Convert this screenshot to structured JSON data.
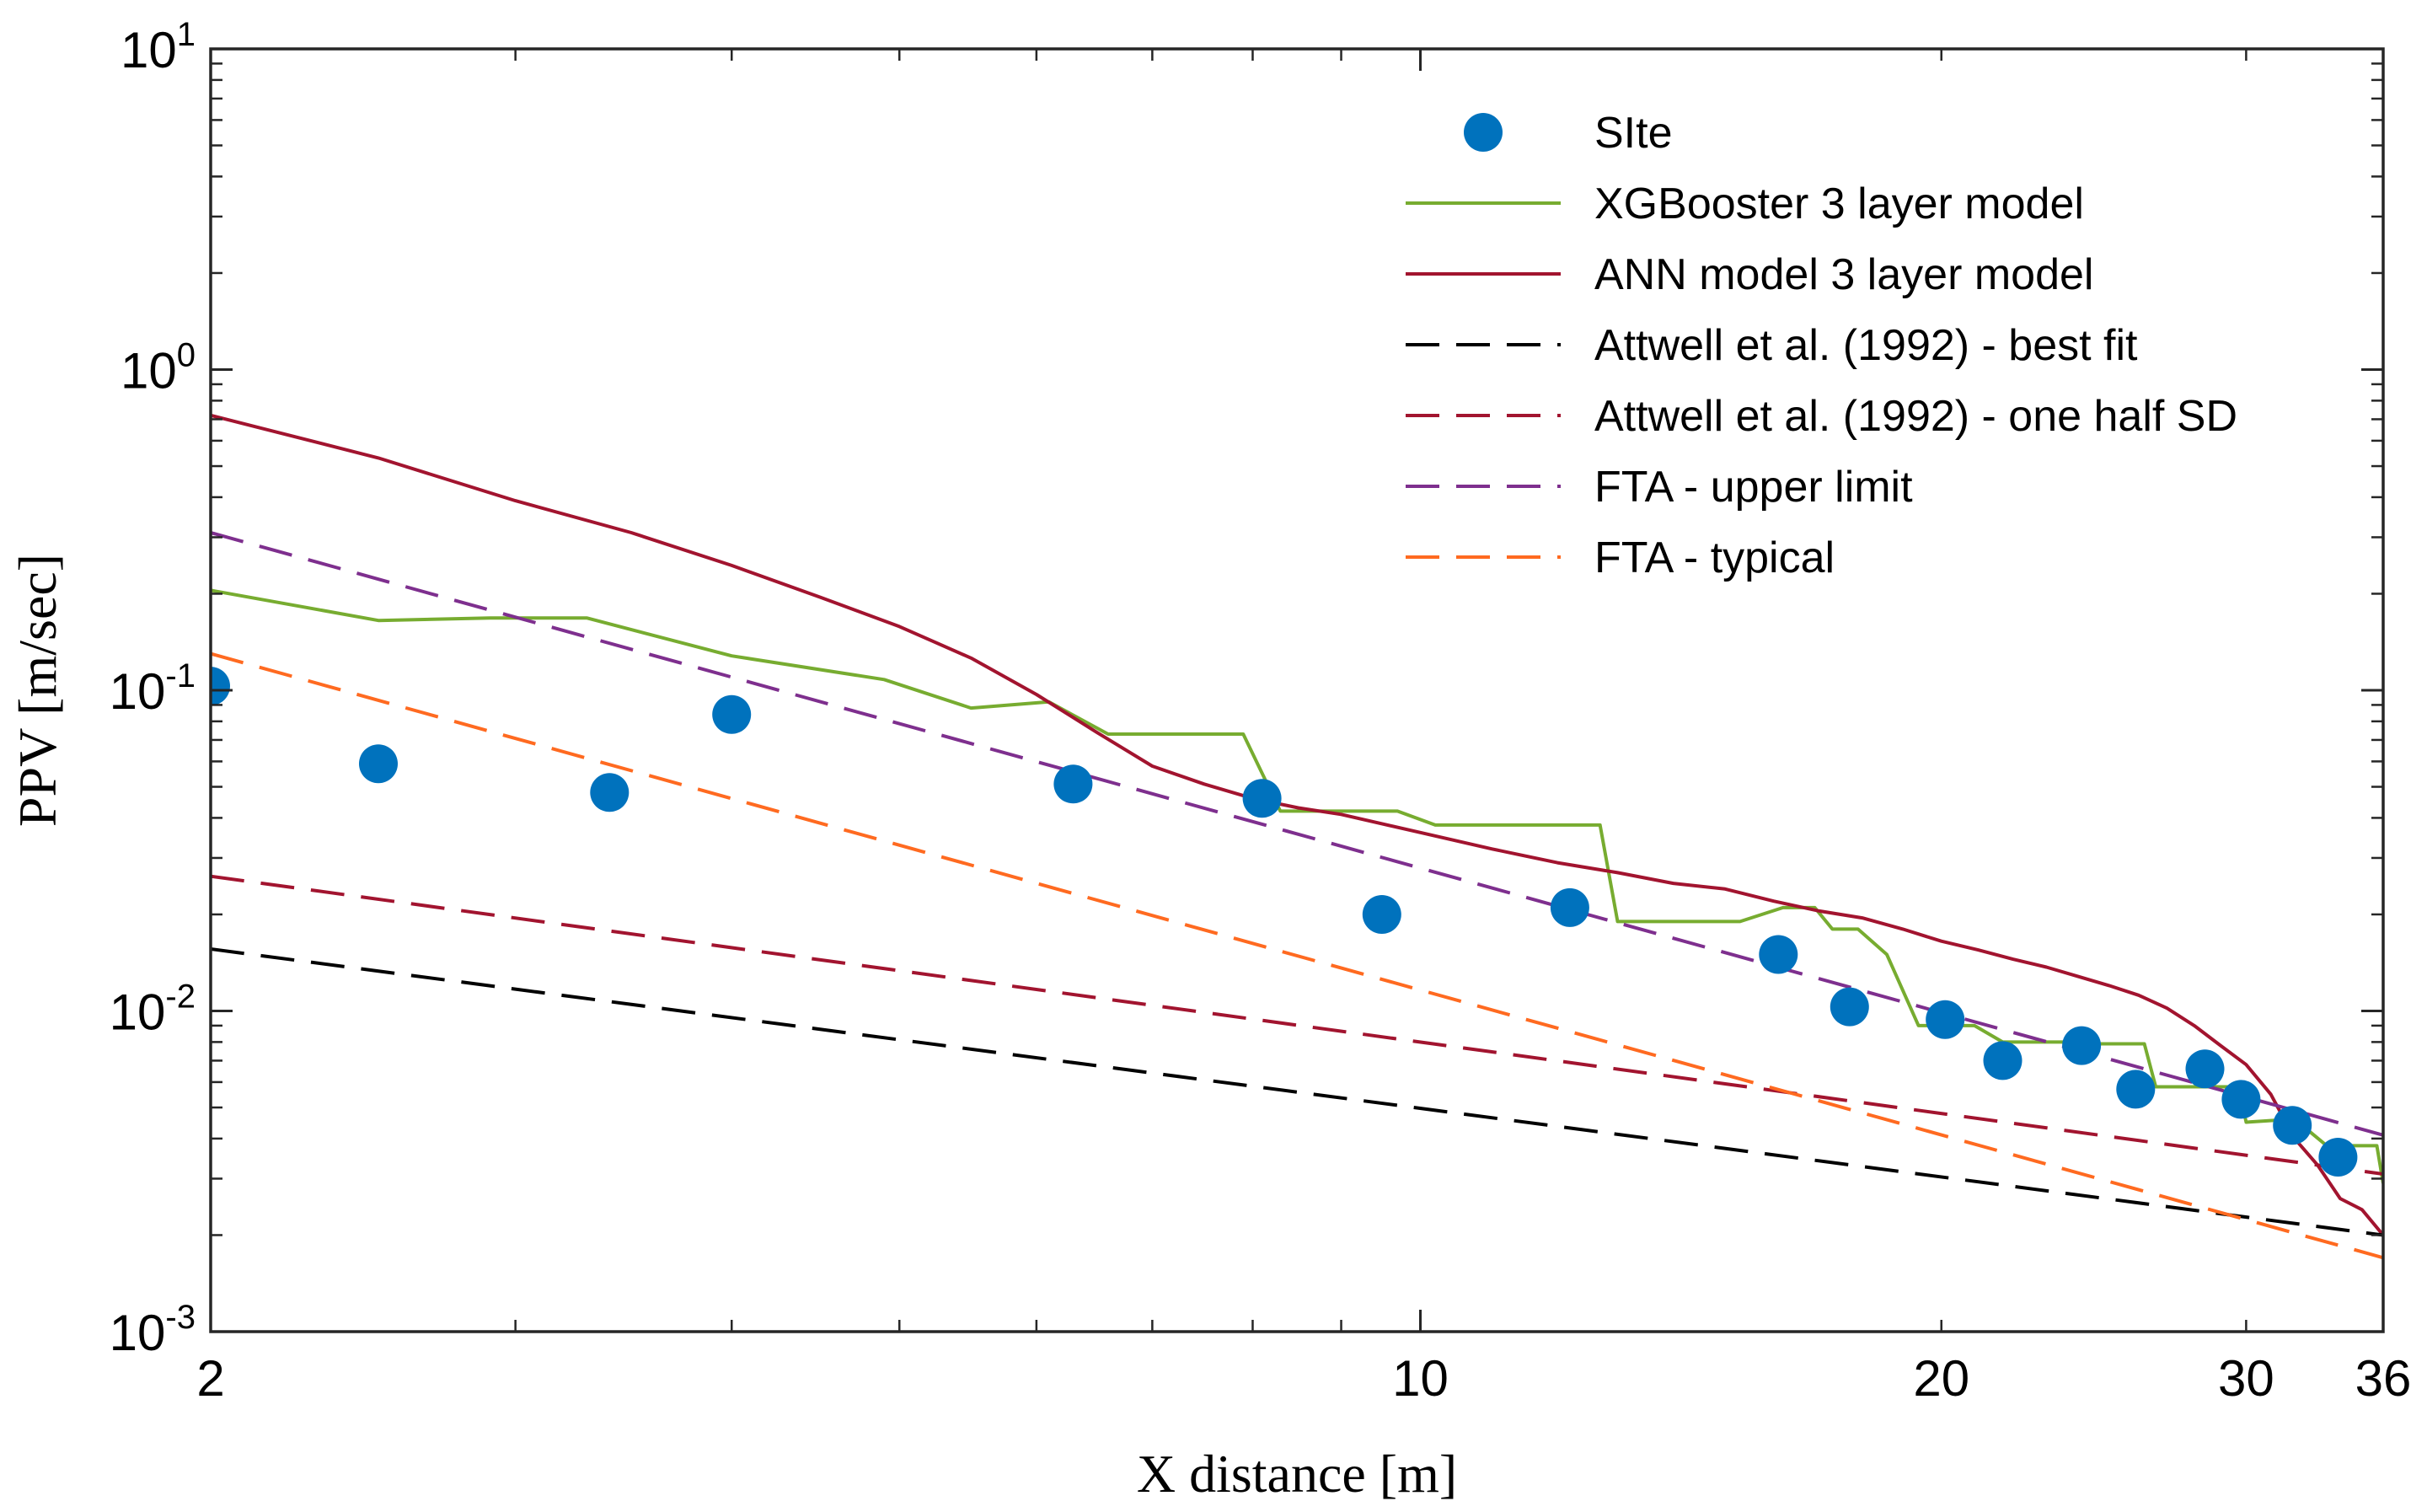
{
  "chart_data": {
    "type": "line",
    "title": "",
    "xlabel": "X distance [m]",
    "ylabel": "PPV [m/sec]",
    "xscale": "log",
    "yscale": "log",
    "xlim": [
      2,
      36
    ],
    "ylim": [
      0.001,
      10
    ],
    "xticks": [
      {
        "value": 2,
        "label": "2"
      },
      {
        "value": 10,
        "label": "10"
      },
      {
        "value": 20,
        "label": "20"
      },
      {
        "value": 30,
        "label": "30"
      },
      {
        "value": 36,
        "label": "36"
      }
    ],
    "yticks": [
      {
        "value": 0.001,
        "base": "10",
        "exp": "-3"
      },
      {
        "value": 0.01,
        "base": "10",
        "exp": "-2"
      },
      {
        "value": 0.1,
        "base": "10",
        "exp": "-1"
      },
      {
        "value": 1,
        "base": "10",
        "exp": "0"
      },
      {
        "value": 10,
        "base": "10",
        "exp": "1"
      }
    ],
    "grid": false,
    "legend_position": "top-right",
    "series": [
      {
        "name": "SIte",
        "kind": "scatter",
        "color": "#0072BD",
        "x": [
          2.0,
          2.5,
          3.4,
          4.0,
          6.3,
          8.1,
          9.5,
          12.2,
          16.1,
          17.7,
          20.1,
          21.7,
          24.1,
          25.9,
          28.4,
          29.8,
          31.9,
          33.9
        ],
        "y": [
          0.103,
          0.059,
          0.048,
          0.084,
          0.051,
          0.046,
          0.02,
          0.021,
          0.015,
          0.0103,
          0.0094,
          0.007,
          0.0078,
          0.0057,
          0.0066,
          0.0053,
          0.0044,
          0.0035
        ]
      },
      {
        "name": "XGBooster 3 layer model",
        "kind": "line",
        "dash": "solid",
        "color": "#77AC30",
        "x": [
          2.0,
          2.5,
          2.9,
          3.3,
          4.0,
          4.9,
          5.5,
          6.1,
          6.6,
          7.6,
          7.9,
          8.3,
          8.9,
          9.7,
          10.2,
          11.3,
          12.7,
          13.0,
          14.7,
          15.3,
          16.2,
          16.9,
          17.3,
          17.9,
          18.6,
          19.4,
          20.9,
          21.7,
          23.6,
          24.1,
          26.2,
          26.6,
          29.0,
          29.7,
          30.0,
          32.0,
          33.4,
          35.7,
          36.0
        ],
        "y": [
          0.205,
          0.165,
          0.168,
          0.168,
          0.128,
          0.108,
          0.088,
          0.092,
          0.073,
          0.073,
          0.073,
          0.042,
          0.042,
          0.042,
          0.038,
          0.038,
          0.038,
          0.019,
          0.019,
          0.019,
          0.021,
          0.021,
          0.018,
          0.018,
          0.015,
          0.009,
          0.009,
          0.008,
          0.008,
          0.0079,
          0.0079,
          0.0058,
          0.0058,
          0.0058,
          0.0045,
          0.0046,
          0.0038,
          0.0038,
          0.0029
        ]
      },
      {
        "name": "ANN model 3 layer model",
        "kind": "line",
        "dash": "solid",
        "color": "#A2142F",
        "x": [
          2.0,
          2.5,
          3.0,
          3.5,
          4.0,
          4.5,
          5.0,
          5.5,
          6.0,
          6.5,
          7.0,
          7.5,
          8.0,
          8.5,
          9.0,
          10.0,
          11.0,
          12.0,
          13.0,
          14.0,
          15.0,
          16.0,
          17.0,
          18.0,
          19.0,
          20.0,
          21.0,
          22.0,
          23.0,
          24.0,
          25.0,
          26.0,
          27.0,
          28.0,
          29.0,
          30.0,
          31.0,
          32.0,
          33.0,
          34.0,
          35.0,
          36.0
        ],
        "y": [
          0.72,
          0.53,
          0.39,
          0.31,
          0.245,
          0.195,
          0.158,
          0.126,
          0.097,
          0.074,
          0.058,
          0.051,
          0.046,
          0.043,
          0.041,
          0.036,
          0.032,
          0.029,
          0.027,
          0.025,
          0.024,
          0.022,
          0.0205,
          0.0195,
          0.018,
          0.0165,
          0.0155,
          0.0145,
          0.0137,
          0.0128,
          0.012,
          0.0112,
          0.0102,
          0.009,
          0.0078,
          0.0068,
          0.0055,
          0.004,
          0.0033,
          0.0026,
          0.0024,
          0.002
        ]
      },
      {
        "name": "Attwell et al. (1992) - best fit",
        "kind": "line",
        "dash": "dashed",
        "color": "#000000",
        "x": [
          2.0,
          36.0
        ],
        "y": [
          0.0156,
          0.002
        ]
      },
      {
        "name": "Attwell et al. (1992) - one half SD",
        "kind": "line",
        "dash": "dashed",
        "color": "#A2142F",
        "x": [
          2.0,
          36.0
        ],
        "y": [
          0.0263,
          0.0031
        ]
      },
      {
        "name": "FTA - upper limit",
        "kind": "line",
        "dash": "dashed",
        "color": "#7E2F8E",
        "x": [
          2.0,
          36.0
        ],
        "y": [
          0.31,
          0.0041
        ]
      },
      {
        "name": "FTA - typical",
        "kind": "line",
        "dash": "dashed",
        "color": "#FF6A20",
        "x": [
          2.0,
          36.0
        ],
        "y": [
          0.13,
          0.0017
        ]
      }
    ]
  }
}
